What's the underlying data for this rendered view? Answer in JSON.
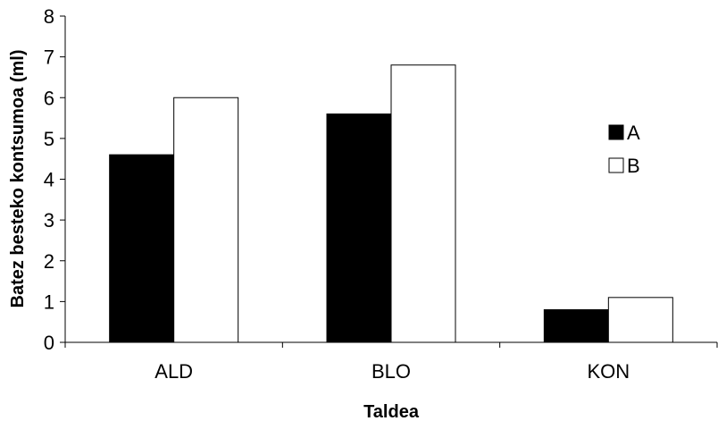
{
  "chart_data": {
    "type": "bar",
    "categories": [
      "ALD",
      "BLO",
      "KON"
    ],
    "series": [
      {
        "name": "A",
        "values": [
          4.6,
          5.6,
          0.8
        ],
        "color": "#000000"
      },
      {
        "name": "B",
        "values": [
          6.0,
          6.8,
          1.1
        ],
        "color": "#ffffff"
      }
    ],
    "title": "",
    "xlabel": "Taldea",
    "ylabel": "Batez besteko kontsumoa (ml)",
    "ylim": [
      0,
      8
    ],
    "yticks": [
      "0",
      "1",
      "2",
      "3",
      "4",
      "5",
      "6",
      "7",
      "8"
    ],
    "grid": false,
    "legend_position": "right"
  }
}
